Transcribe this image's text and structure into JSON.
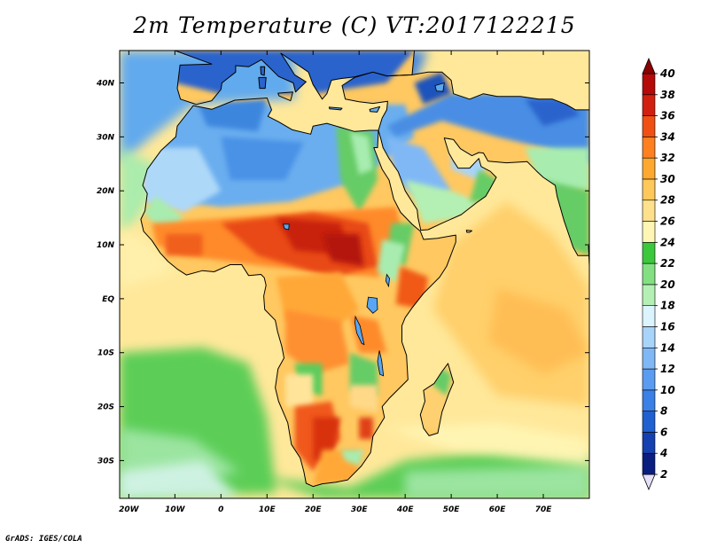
{
  "title": "2m Temperature (C) VT:2017122215",
  "credit": "GrADS: IGES/COLA",
  "map": {
    "lon_range": [
      -22,
      80
    ],
    "lat_range": [
      -37,
      46
    ],
    "lon_ticks": [
      {
        "value": -20,
        "label": "20W"
      },
      {
        "value": -10,
        "label": "10W"
      },
      {
        "value": 0,
        "label": "0"
      },
      {
        "value": 10,
        "label": "10E"
      },
      {
        "value": 20,
        "label": "20E"
      },
      {
        "value": 30,
        "label": "30E"
      },
      {
        "value": 40,
        "label": "40E"
      },
      {
        "value": 50,
        "label": "50E"
      },
      {
        "value": 60,
        "label": "60E"
      },
      {
        "value": 70,
        "label": "70E"
      }
    ],
    "lat_ticks": [
      {
        "value": 40,
        "label": "40N"
      },
      {
        "value": 30,
        "label": "30N"
      },
      {
        "value": 20,
        "label": "20N"
      },
      {
        "value": 10,
        "label": "10N"
      },
      {
        "value": 0,
        "label": "EQ"
      },
      {
        "value": -10,
        "label": "10S"
      },
      {
        "value": -20,
        "label": "20S"
      },
      {
        "value": -30,
        "label": "30S"
      }
    ]
  },
  "colorbar": {
    "levels": [
      "2",
      "4",
      "6",
      "8",
      "10",
      "12",
      "14",
      "16",
      "18",
      "20",
      "22",
      "24",
      "26",
      "28",
      "30",
      "32",
      "34",
      "36",
      "38",
      "40"
    ],
    "colors": [
      "#e6e0fa",
      "#0a1e80",
      "#1540b0",
      "#2060d0",
      "#3a80e6",
      "#5a9cf0",
      "#80b8f6",
      "#a8d4fa",
      "#dcf4ff",
      "#b4f0b4",
      "#82e082",
      "#3cc83c",
      "#fff5b4",
      "#ffe08c",
      "#ffc85a",
      "#ffa830",
      "#ff8020",
      "#f05014",
      "#d22010",
      "#b40a0a",
      "#8c0000"
    ]
  },
  "chart_data": {
    "type": "heatmap",
    "title": "2m Temperature (C) VT:2017122215",
    "variable": "2m Temperature",
    "units": "C",
    "valid_time": "2017122215",
    "xlim": [
      -22,
      80
    ],
    "ylim": [
      -37,
      46
    ],
    "colorbar_levels": [
      2,
      4,
      6,
      8,
      10,
      12,
      14,
      16,
      18,
      20,
      22,
      24,
      26,
      28,
      30,
      32,
      34,
      36,
      38,
      40
    ]
  }
}
